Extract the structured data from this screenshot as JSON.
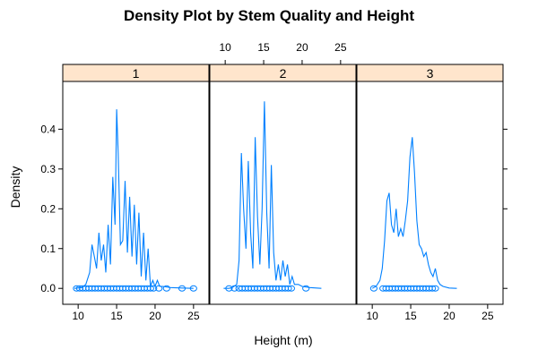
{
  "chart_data": {
    "type": "line",
    "title": "Density Plot by Stem Quality and Height",
    "xlabel": "Height (m)",
    "ylabel": "Density",
    "xlim": [
      8,
      27
    ],
    "ylim": [
      -0.04,
      0.52
    ],
    "x_ticks": [
      10,
      15,
      20,
      25
    ],
    "y_ticks": [
      0.0,
      0.1,
      0.2,
      0.3,
      0.4
    ],
    "y_tick_labels": [
      "0.0",
      "0.1",
      "0.2",
      "0.3",
      "0.4"
    ],
    "panels": [
      {
        "strip": "1",
        "series": {
          "x": [
            9.5,
            10.5,
            11.0,
            11.5,
            11.8,
            12.1,
            12.4,
            12.7,
            13.0,
            13.3,
            13.6,
            13.9,
            14.2,
            14.5,
            14.8,
            15.0,
            15.2,
            15.5,
            15.8,
            16.1,
            16.4,
            16.7,
            17.0,
            17.3,
            17.6,
            17.9,
            18.2,
            18.5,
            18.8,
            19.1,
            19.4,
            19.7,
            20.0,
            20.3,
            20.6,
            21.0,
            22.0,
            23.5,
            25.0
          ],
          "y": [
            0.0,
            0.002,
            0.01,
            0.04,
            0.11,
            0.08,
            0.05,
            0.14,
            0.07,
            0.11,
            0.04,
            0.16,
            0.06,
            0.28,
            0.16,
            0.45,
            0.34,
            0.11,
            0.12,
            0.27,
            0.09,
            0.23,
            0.08,
            0.21,
            0.06,
            0.19,
            0.03,
            0.14,
            0.02,
            0.1,
            0.005,
            0.02,
            0.005,
            0.02,
            0.005,
            0.005,
            0.002,
            0.001,
            0.0
          ]
        },
        "rug": [
          9.8,
          10.2,
          10.6,
          11.0,
          11.4,
          11.8,
          12.2,
          12.6,
          13.0,
          13.4,
          13.8,
          14.2,
          14.6,
          15.0,
          15.4,
          15.8,
          16.2,
          16.6,
          17.0,
          17.4,
          17.8,
          18.2,
          18.6,
          19.0,
          19.4,
          19.8,
          20.5,
          21.5,
          23.5,
          25.0
        ]
      },
      {
        "strip": "2",
        "series": {
          "x": [
            9.8,
            10.5,
            11.0,
            11.5,
            11.8,
            12.1,
            12.4,
            12.7,
            13.0,
            13.3,
            13.6,
            13.9,
            14.2,
            14.5,
            14.8,
            15.1,
            15.4,
            15.7,
            16.0,
            16.3,
            16.6,
            16.9,
            17.2,
            17.5,
            17.8,
            18.1,
            18.4,
            18.7,
            19.0,
            19.5,
            20.0,
            21.0,
            22.5
          ],
          "y": [
            0.0,
            0.0,
            0.003,
            0.01,
            0.07,
            0.34,
            0.2,
            0.1,
            0.32,
            0.14,
            0.05,
            0.38,
            0.18,
            0.06,
            0.2,
            0.47,
            0.19,
            0.05,
            0.31,
            0.09,
            0.02,
            0.06,
            0.02,
            0.07,
            0.03,
            0.06,
            0.01,
            0.03,
            0.01,
            0.01,
            0.005,
            0.002,
            0.0
          ]
        },
        "rug": [
          10.5,
          11.2,
          11.8,
          12.2,
          12.6,
          13.0,
          13.4,
          13.8,
          14.2,
          14.6,
          15.0,
          15.4,
          15.8,
          16.2,
          16.6,
          17.0,
          17.4,
          17.8,
          18.2,
          18.6,
          20.5
        ]
      },
      {
        "strip": "3",
        "series": {
          "x": [
            10.0,
            10.5,
            11.0,
            11.3,
            11.6,
            11.9,
            12.2,
            12.5,
            12.8,
            13.1,
            13.4,
            13.7,
            14.0,
            14.3,
            14.6,
            14.9,
            15.2,
            15.5,
            15.8,
            16.1,
            16.4,
            16.7,
            17.0,
            17.3,
            17.6,
            17.9,
            18.2,
            18.5,
            18.8,
            19.2,
            20.0,
            21.0
          ],
          "y": [
            0.0,
            0.005,
            0.02,
            0.05,
            0.12,
            0.22,
            0.24,
            0.16,
            0.14,
            0.2,
            0.13,
            0.15,
            0.13,
            0.17,
            0.22,
            0.33,
            0.38,
            0.29,
            0.17,
            0.11,
            0.1,
            0.08,
            0.09,
            0.06,
            0.04,
            0.03,
            0.05,
            0.02,
            0.01,
            0.005,
            0.001,
            0.0
          ]
        },
        "rug": [
          10.2,
          11.4,
          11.8,
          12.2,
          12.6,
          13.0,
          13.4,
          13.8,
          14.2,
          14.6,
          15.0,
          15.4,
          15.8,
          16.2,
          16.6,
          17.0,
          17.4,
          17.8,
          18.2
        ]
      }
    ],
    "grid": false,
    "legend": "none",
    "colors": {
      "line": "#0080ff",
      "strip_bg": "#ffe5cc",
      "axis": "#000000"
    }
  }
}
